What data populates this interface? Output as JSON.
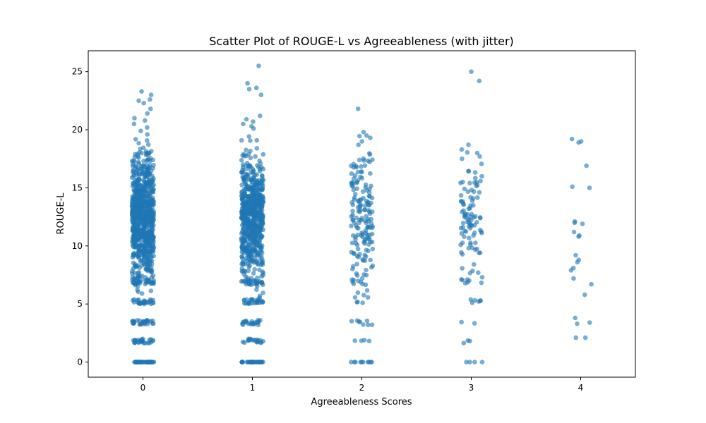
{
  "chart_data": {
    "type": "scatter",
    "title": "Scatter Plot of ROUGE-L vs Agreeableness (with jitter)",
    "xlabel": "Agreeableness Scores",
    "ylabel": "ROUGE-L",
    "xlim": [
      -0.5,
      4.5
    ],
    "ylim": [
      -1.3,
      26.8
    ],
    "x_ticks": [
      0,
      1,
      2,
      3,
      4
    ],
    "y_ticks": [
      0,
      5,
      10,
      15,
      20,
      25
    ],
    "grid": false,
    "legend": "none",
    "point_color": "#1f77b4",
    "point_alpha": 0.6,
    "jitter": 0.1,
    "groups": [
      {
        "x": 0,
        "count": 980,
        "min": 0,
        "max": 23.3,
        "zero_count": 40,
        "outliers": [
          23.3,
          23.0,
          22.6,
          22.5,
          22.3,
          21.8,
          21.4,
          21.0,
          20.8,
          20.5,
          20.2,
          19.9,
          19.6
        ]
      },
      {
        "x": 1,
        "count": 800,
        "min": 0,
        "max": 25.5,
        "zero_count": 30,
        "outliers": [
          25.5,
          24.0,
          23.6,
          23.5,
          23.0,
          21.2,
          20.9,
          20.7,
          20.5,
          20.3,
          20.1
        ]
      },
      {
        "x": 2,
        "count": 200,
        "min": 0,
        "max": 21.8,
        "zero_count": 10,
        "outliers": [
          21.8,
          19.8,
          19.5,
          19.3,
          19.0,
          18.7
        ]
      },
      {
        "x": 3,
        "count": 120,
        "min": 0,
        "max": 25.0,
        "zero_count": 4,
        "outliers": [
          25.0,
          24.2,
          18.7,
          18.3,
          18.0,
          17.5
        ]
      },
      {
        "x": 4,
        "count": 25,
        "min": 2.1,
        "max": 19.2,
        "zero_count": 0,
        "points": [
          19.2,
          19.0,
          18.9,
          16.9,
          15.1,
          15.0,
          12.1,
          12.0,
          11.9,
          11.2,
          10.9,
          10.8,
          9.2,
          8.8,
          8.6,
          8.1,
          7.9,
          7.2,
          6.7,
          5.8,
          3.8,
          3.4,
          3.3,
          2.1,
          2.1
        ]
      }
    ]
  }
}
